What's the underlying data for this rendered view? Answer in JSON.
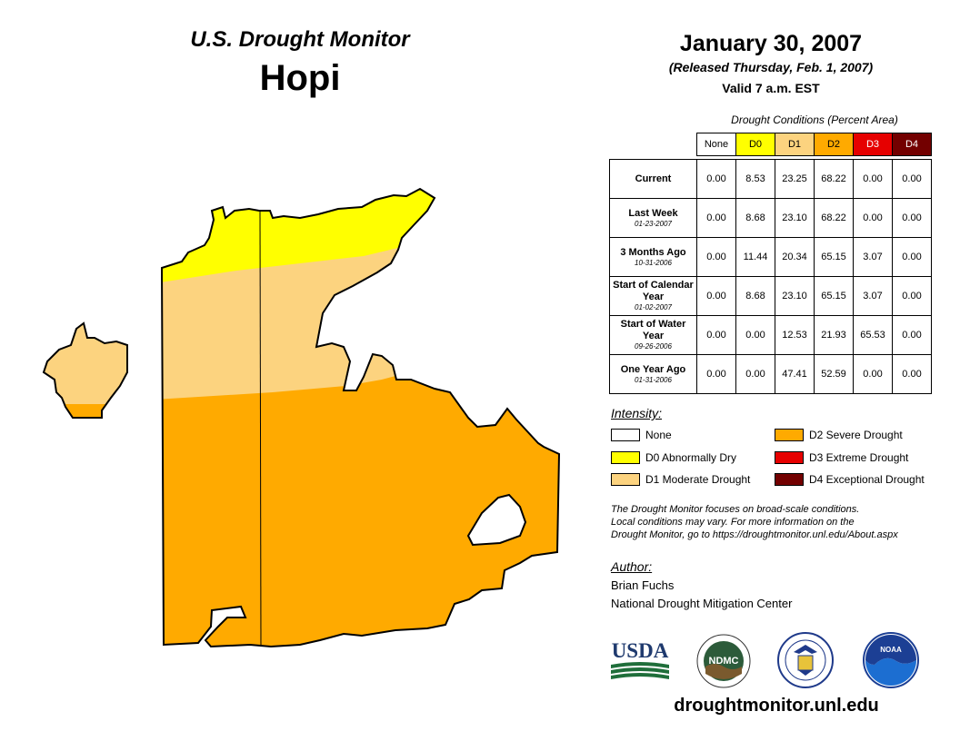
{
  "header": {
    "title": "U.S. Drought Monitor",
    "region": "Hopi"
  },
  "report": {
    "date": "January 30, 2007",
    "released": "(Released Thursday, Feb. 1, 2007)",
    "valid": "Valid 7 a.m. EST"
  },
  "table": {
    "caption": "Drought Conditions (Percent Area)",
    "columns": [
      "None",
      "D0",
      "D1",
      "D2",
      "D3",
      "D4"
    ],
    "rows": [
      {
        "label": "Current",
        "date": "",
        "values": [
          "0.00",
          "8.53",
          "23.25",
          "68.22",
          "0.00",
          "0.00"
        ]
      },
      {
        "label": "Last Week",
        "date": "01-23-2007",
        "values": [
          "0.00",
          "8.68",
          "23.10",
          "68.22",
          "0.00",
          "0.00"
        ]
      },
      {
        "label": "3 Months Ago",
        "date": "10-31-2006",
        "values": [
          "0.00",
          "11.44",
          "20.34",
          "65.15",
          "3.07",
          "0.00"
        ]
      },
      {
        "label": "Start of Calendar Year",
        "date": "01-02-2007",
        "values": [
          "0.00",
          "8.68",
          "23.10",
          "65.15",
          "3.07",
          "0.00"
        ]
      },
      {
        "label": "Start of Water Year",
        "date": "09-26-2006",
        "values": [
          "0.00",
          "0.00",
          "12.53",
          "21.93",
          "65.53",
          "0.00"
        ]
      },
      {
        "label": "One Year Ago",
        "date": "01-31-2006",
        "values": [
          "0.00",
          "0.00",
          "47.41",
          "52.59",
          "0.00",
          "0.00"
        ]
      }
    ]
  },
  "legend": {
    "heading": "Intensity:",
    "items": [
      {
        "label": "None",
        "color": "#ffffff"
      },
      {
        "label": "D0 Abnormally Dry",
        "color": "#ffff00"
      },
      {
        "label": "D1 Moderate Drought",
        "color": "#fcd37f"
      },
      {
        "label": "D2 Severe Drought",
        "color": "#ffaa00"
      },
      {
        "label": "D3 Extreme Drought",
        "color": "#e60000"
      },
      {
        "label": "D4 Exceptional Drought",
        "color": "#730000"
      }
    ]
  },
  "disclaimer": {
    "line1": "The Drought Monitor focuses on broad-scale conditions.",
    "line2": "Local conditions may vary. For more information on the",
    "line3": "Drought Monitor, go to https://droughtmonitor.unl.edu/About.aspx"
  },
  "author": {
    "heading": "Author:",
    "name": "Brian Fuchs",
    "org": "National Drought Mitigation Center"
  },
  "logos": {
    "usda": "USDA",
    "ndmc": "NDMC",
    "noaa": "NOAA",
    "usda_icon": "usda-logo-icon",
    "ndmc_icon": "ndmc-seal-icon",
    "commerce_icon": "commerce-seal-icon",
    "noaa_icon": "noaa-logo-icon"
  },
  "footer": {
    "url": "droughtmonitor.unl.edu"
  }
}
